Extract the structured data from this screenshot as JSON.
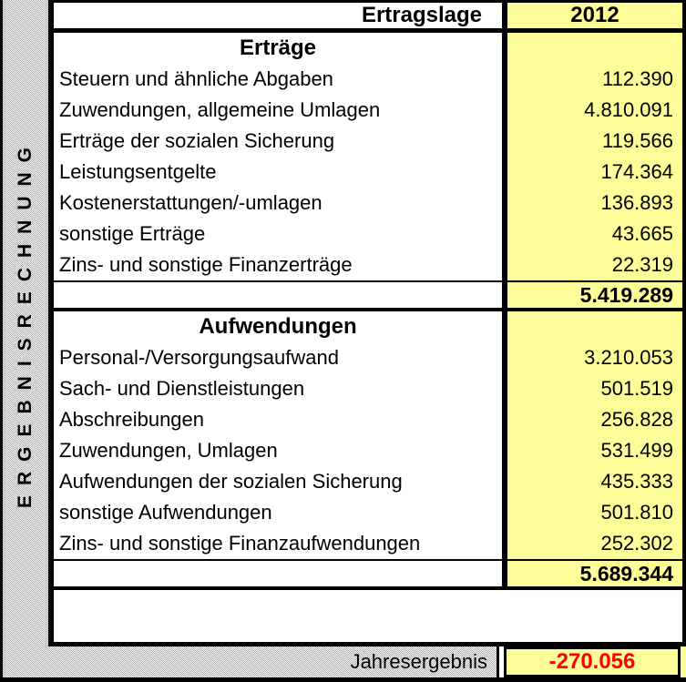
{
  "colors": {
    "value_column_bg": "#FCFC99",
    "negative_value_text": "#FF0000",
    "border": "#000000",
    "sidebar_pattern_gray": "#ADADAD"
  },
  "sidebar": {
    "vertical_label": "ERGEBNISRECHNUNG"
  },
  "table": {
    "header": {
      "label": "Ertragslage",
      "year": "2012"
    },
    "sections": [
      {
        "title": "Erträge",
        "rows": [
          {
            "label": "Steuern und ähnliche Abgaben",
            "value": "112.390"
          },
          {
            "label": "Zuwendungen, allgemeine Umlagen",
            "value": "4.810.091"
          },
          {
            "label": "Erträge der sozialen Sicherung",
            "value": "119.566"
          },
          {
            "label": "Leistungsentgelte",
            "value": "174.364"
          },
          {
            "label": "Kostenerstattungen/-umlagen",
            "value": "136.893"
          },
          {
            "label": "sonstige Erträge",
            "value": "43.665"
          },
          {
            "label": "Zins- und sonstige Finanzerträge",
            "value": "22.319"
          }
        ],
        "total": "5.419.289"
      },
      {
        "title": "Aufwendungen",
        "rows": [
          {
            "label": "Personal-/Versorgungsaufwand",
            "value": "3.210.053"
          },
          {
            "label": "Sach- und Dienstleistungen",
            "value": "501.519"
          },
          {
            "label": "Abschreibungen",
            "value": "256.828"
          },
          {
            "label": "Zuwendungen, Umlagen",
            "value": "531.499"
          },
          {
            "label": "Aufwendungen der sozialen Sicherung",
            "value": "435.333"
          },
          {
            "label": "sonstige Aufwendungen",
            "value": "501.810"
          },
          {
            "label": "Zins- und sonstige Finanzaufwendungen",
            "value": "252.302"
          }
        ],
        "total": "5.689.344"
      }
    ],
    "result": {
      "label": "Jahresergebnis",
      "value": "-270.056"
    }
  }
}
